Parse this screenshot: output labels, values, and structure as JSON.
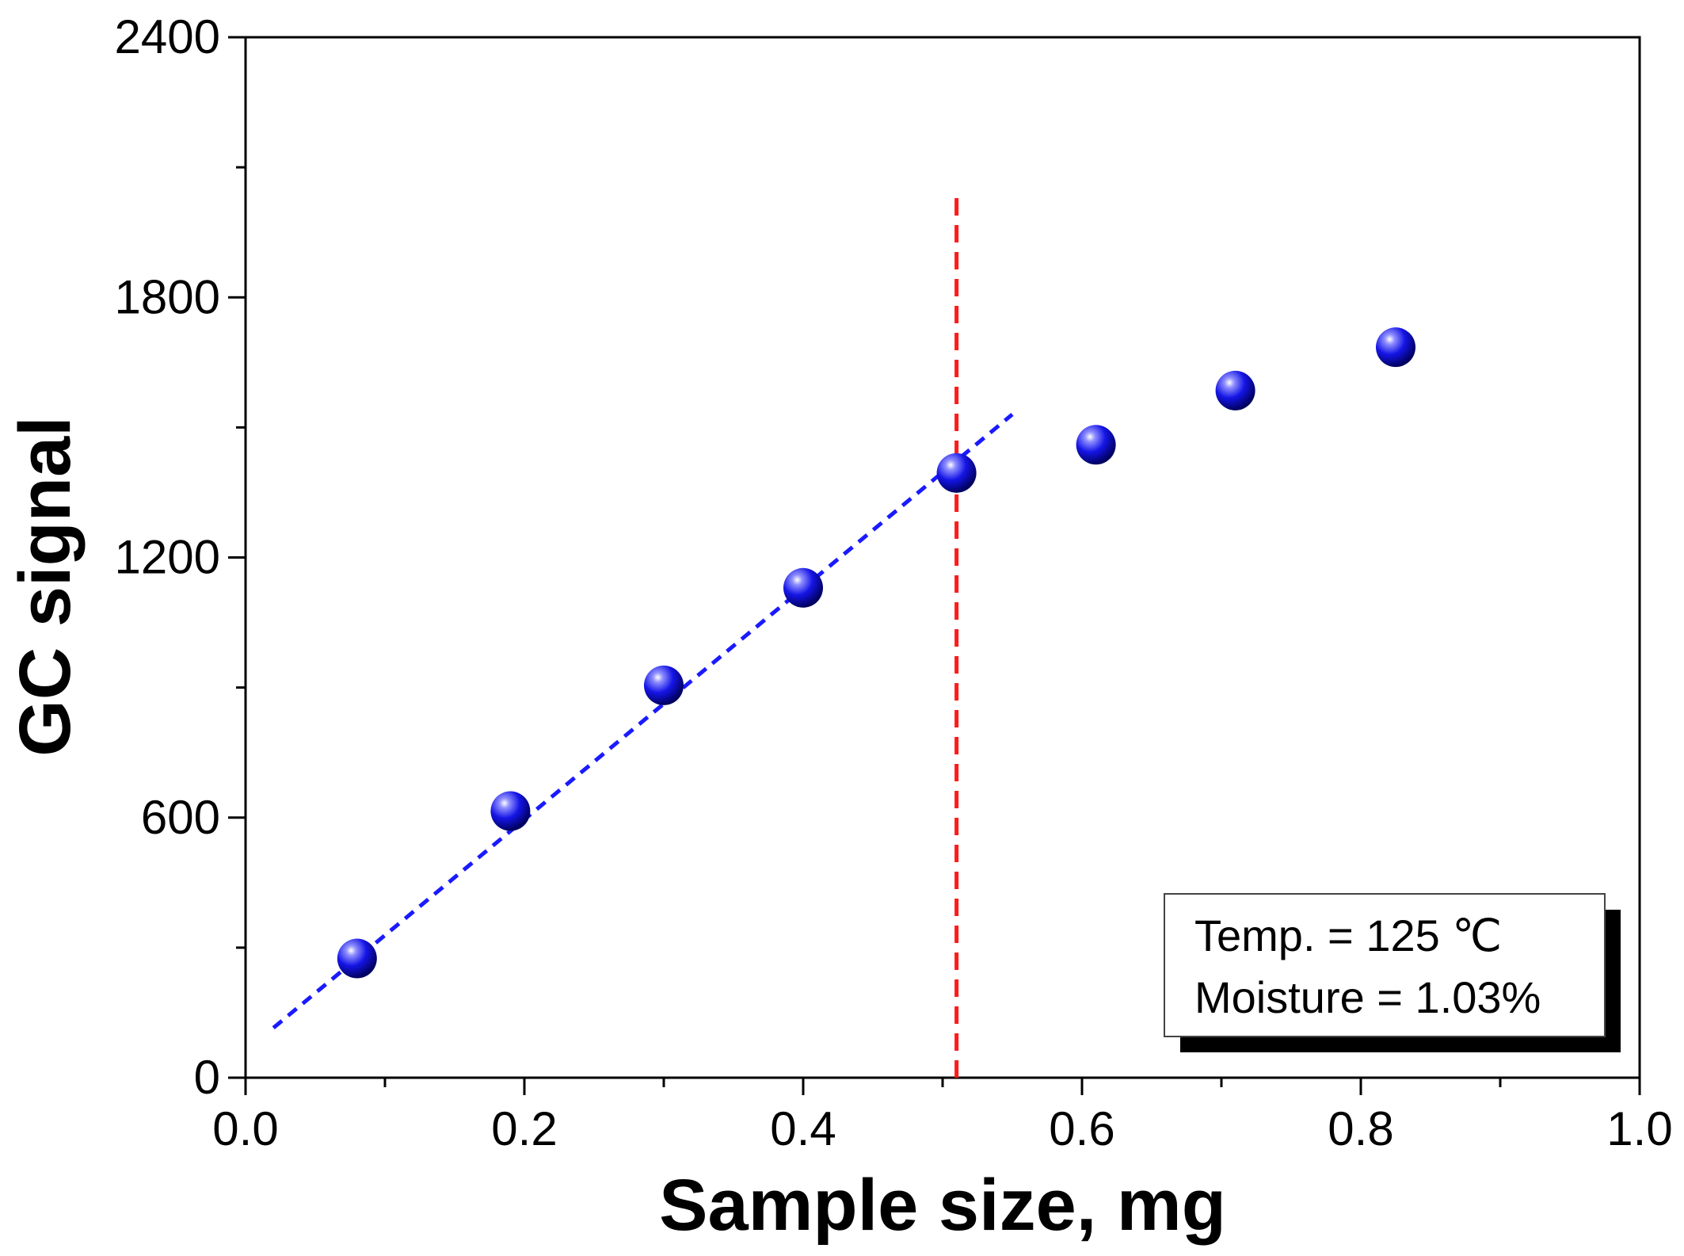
{
  "chart_data": {
    "type": "scatter",
    "title": "",
    "xlabel": "Sample size, mg",
    "ylabel": "GC signal",
    "xlim": [
      0.0,
      1.0
    ],
    "ylim": [
      0,
      2400
    ],
    "x_ticks": [
      "0.0",
      "0.2",
      "0.4",
      "0.6",
      "0.8",
      "1.0"
    ],
    "x_tick_values": [
      0.0,
      0.2,
      0.4,
      0.6,
      0.8,
      1.0
    ],
    "y_ticks": [
      "0",
      "600",
      "1200",
      "1800",
      "2400"
    ],
    "y_tick_values": [
      0,
      600,
      1200,
      1800,
      2400
    ],
    "grid": false,
    "series": [
      {
        "points": [
          {
            "x": 0.08,
            "y": 275
          },
          {
            "x": 0.19,
            "y": 615
          },
          {
            "x": 0.3,
            "y": 905
          },
          {
            "x": 0.4,
            "y": 1130
          },
          {
            "x": 0.51,
            "y": 1395
          },
          {
            "x": 0.61,
            "y": 1460
          },
          {
            "x": 0.71,
            "y": 1585
          },
          {
            "x": 0.825,
            "y": 1685
          }
        ],
        "color": "#1010e0"
      }
    ],
    "fit_line": {
      "x": [
        0.02,
        0.55
      ],
      "y": [
        115,
        1530
      ],
      "color": "#1a1aff",
      "style": "dashed"
    },
    "vertical_line": {
      "x": 0.51,
      "y_range": [
        0,
        2030
      ],
      "color": "#ff1a1a",
      "style": "dashed"
    },
    "legend": {
      "placement": "bottom-right",
      "lines": [
        "Temp. = 125 ℃",
        "Moisture = 1.03%"
      ]
    }
  }
}
